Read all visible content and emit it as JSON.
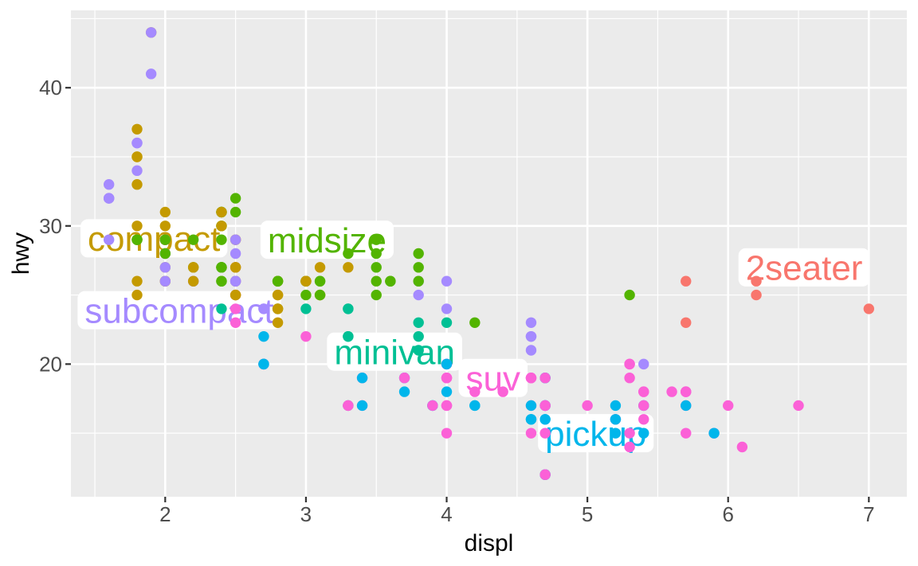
{
  "chart_data": {
    "type": "scatter",
    "title": "",
    "xlabel": "displ",
    "ylabel": "hwy",
    "x_domain": [
      1.33,
      7.27
    ],
    "y_domain": [
      10.4,
      45.6
    ],
    "x_major_ticks": [
      2,
      3,
      4,
      5,
      6,
      7
    ],
    "x_minor_ticks": [
      1.5,
      2.5,
      3.5,
      4.5,
      5.5,
      6.5
    ],
    "y_major_ticks": [
      20,
      30,
      40
    ],
    "y_minor_ticks": [
      15,
      25,
      35,
      45
    ],
    "grid": true,
    "legend_position": "none-direct-labels",
    "classes": [
      {
        "name": "2seater",
        "color": "#F8766D"
      },
      {
        "name": "compact",
        "color": "#C49A00"
      },
      {
        "name": "midsize",
        "color": "#53B400"
      },
      {
        "name": "minivan",
        "color": "#00C094"
      },
      {
        "name": "pickup",
        "color": "#00B6EB"
      },
      {
        "name": "subcompact",
        "color": "#A58AFF"
      },
      {
        "name": "suv",
        "color": "#FB61D7"
      }
    ],
    "class_labels": [
      {
        "text": "compact",
        "x": 1.92,
        "y": 29.1,
        "class_index": 1
      },
      {
        "text": "midsize",
        "x": 3.15,
        "y": 29.0,
        "class_index": 2
      },
      {
        "text": "subcompact",
        "x": 2.1,
        "y": 23.9,
        "class_index": 5
      },
      {
        "text": "minivan",
        "x": 3.63,
        "y": 20.9,
        "class_index": 3
      },
      {
        "text": "suv",
        "x": 4.33,
        "y": 19.0,
        "class_index": 6
      },
      {
        "text": "pickup",
        "x": 5.06,
        "y": 15.0,
        "class_index": 4
      },
      {
        "text": "2seater",
        "x": 6.54,
        "y": 27.0,
        "class_index": 0
      }
    ],
    "points": [
      [
        1.8,
        29,
        1
      ],
      [
        1.8,
        29,
        1
      ],
      [
        2,
        31,
        1
      ],
      [
        2,
        30,
        1
      ],
      [
        2.8,
        26,
        1
      ],
      [
        2.8,
        26,
        1
      ],
      [
        3.1,
        27,
        1
      ],
      [
        1.8,
        26,
        1
      ],
      [
        1.8,
        25,
        1
      ],
      [
        2,
        28,
        1
      ],
      [
        2,
        27,
        1
      ],
      [
        2.8,
        25,
        1
      ],
      [
        2.8,
        25,
        1
      ],
      [
        3.1,
        25,
        1
      ],
      [
        3.1,
        25,
        1
      ],
      [
        2.8,
        24,
        2
      ],
      [
        3.1,
        25,
        2
      ],
      [
        4.2,
        23,
        2
      ],
      [
        5.3,
        20,
        6
      ],
      [
        5.3,
        15,
        6
      ],
      [
        5.3,
        20,
        6
      ],
      [
        5.7,
        17,
        6
      ],
      [
        6,
        17,
        6
      ],
      [
        5.7,
        26,
        0
      ],
      [
        5.7,
        23,
        0
      ],
      [
        6.2,
        26,
        0
      ],
      [
        6.2,
        25,
        0
      ],
      [
        7,
        24,
        0
      ],
      [
        5.3,
        19,
        6
      ],
      [
        5.3,
        14,
        6
      ],
      [
        5.7,
        15,
        6
      ],
      [
        6.5,
        17,
        6
      ],
      [
        2.4,
        27,
        2
      ],
      [
        2.4,
        30,
        2
      ],
      [
        3.1,
        26,
        2
      ],
      [
        3.5,
        29,
        2
      ],
      [
        3.6,
        26,
        2
      ],
      [
        2.4,
        24,
        3
      ],
      [
        3,
        24,
        3
      ],
      [
        3.3,
        22,
        3
      ],
      [
        3.3,
        22,
        3
      ],
      [
        3.3,
        24,
        3
      ],
      [
        3.3,
        24,
        3
      ],
      [
        3.3,
        17,
        3
      ],
      [
        3.8,
        22,
        3
      ],
      [
        3.8,
        21,
        3
      ],
      [
        3.8,
        23,
        3
      ],
      [
        4,
        23,
        3
      ],
      [
        3.7,
        19,
        4
      ],
      [
        3.7,
        18,
        4
      ],
      [
        3.9,
        17,
        4
      ],
      [
        3.9,
        17,
        4
      ],
      [
        4.7,
        19,
        4
      ],
      [
        4.7,
        19,
        4
      ],
      [
        4.7,
        12,
        4
      ],
      [
        5.2,
        16,
        4
      ],
      [
        5.2,
        17,
        4
      ],
      [
        3.9,
        17,
        6
      ],
      [
        4.7,
        17,
        6
      ],
      [
        4.7,
        17,
        6
      ],
      [
        4.7,
        12,
        6
      ],
      [
        5.2,
        16,
        6
      ],
      [
        5.7,
        18,
        6
      ],
      [
        5.9,
        15,
        6
      ],
      [
        4.7,
        16,
        4
      ],
      [
        4.7,
        12,
        4
      ],
      [
        4.7,
        17,
        4
      ],
      [
        4.7,
        17,
        4
      ],
      [
        4.7,
        16,
        4
      ],
      [
        4.7,
        17,
        4
      ],
      [
        5.2,
        15,
        4
      ],
      [
        5.2,
        16,
        4
      ],
      [
        5.7,
        17,
        4
      ],
      [
        5.9,
        15,
        4
      ],
      [
        4.6,
        17,
        6
      ],
      [
        5.4,
        17,
        6
      ],
      [
        5.4,
        18,
        6
      ],
      [
        4,
        17,
        6
      ],
      [
        4,
        19,
        6
      ],
      [
        4,
        17,
        6
      ],
      [
        4,
        19,
        6
      ],
      [
        4.6,
        19,
        6
      ],
      [
        4.6,
        19,
        6
      ],
      [
        4.2,
        17,
        4
      ],
      [
        4.2,
        17,
        4
      ],
      [
        4.6,
        16,
        4
      ],
      [
        4.6,
        16,
        4
      ],
      [
        4.6,
        17,
        4
      ],
      [
        5.4,
        15,
        4
      ],
      [
        5.4,
        17,
        4
      ],
      [
        3.8,
        26,
        5
      ],
      [
        3.8,
        25,
        5
      ],
      [
        4,
        26,
        5
      ],
      [
        4,
        24,
        5
      ],
      [
        4.6,
        21,
        5
      ],
      [
        4.6,
        22,
        5
      ],
      [
        4.6,
        23,
        5
      ],
      [
        4.6,
        22,
        5
      ],
      [
        5.4,
        20,
        5
      ],
      [
        1.6,
        33,
        5
      ],
      [
        1.6,
        32,
        5
      ],
      [
        1.6,
        32,
        5
      ],
      [
        1.6,
        29,
        5
      ],
      [
        1.6,
        32,
        5
      ],
      [
        1.8,
        34,
        5
      ],
      [
        1.8,
        36,
        5
      ],
      [
        1.8,
        36,
        5
      ],
      [
        2,
        29,
        5
      ],
      [
        2.4,
        26,
        2
      ],
      [
        2.4,
        27,
        2
      ],
      [
        2.4,
        30,
        2
      ],
      [
        2.4,
        31,
        2
      ],
      [
        2.4,
        26,
        2
      ],
      [
        2.5,
        26,
        2
      ],
      [
        2.5,
        26,
        2
      ],
      [
        3.3,
        28,
        2
      ],
      [
        2,
        26,
        5
      ],
      [
        2,
        29,
        5
      ],
      [
        2,
        28,
        5
      ],
      [
        2,
        27,
        5
      ],
      [
        2.7,
        24,
        5
      ],
      [
        2.7,
        24,
        5
      ],
      [
        3,
        22,
        6
      ],
      [
        3.7,
        19,
        6
      ],
      [
        4,
        20,
        6
      ],
      [
        4.7,
        17,
        6
      ],
      [
        4.7,
        12,
        6
      ],
      [
        4.7,
        19,
        6
      ],
      [
        5.7,
        18,
        6
      ],
      [
        6.1,
        14,
        6
      ],
      [
        4,
        15,
        6
      ],
      [
        4.2,
        18,
        6
      ],
      [
        4.4,
        18,
        6
      ],
      [
        4.6,
        15,
        6
      ],
      [
        5.4,
        17,
        6
      ],
      [
        5.4,
        16,
        6
      ],
      [
        5.4,
        18,
        6
      ],
      [
        4,
        17,
        6
      ],
      [
        4,
        19,
        6
      ],
      [
        4.6,
        19,
        6
      ],
      [
        5,
        17,
        6
      ],
      [
        2.4,
        29,
        2
      ],
      [
        2.4,
        27,
        2
      ],
      [
        2.5,
        31,
        2
      ],
      [
        2.5,
        32,
        2
      ],
      [
        3.5,
        26,
        2
      ],
      [
        3.5,
        27,
        2
      ],
      [
        3,
        26,
        2
      ],
      [
        3,
        25,
        2
      ],
      [
        3.5,
        25,
        2
      ],
      [
        3.3,
        17,
        6
      ],
      [
        3.3,
        17,
        6
      ],
      [
        4,
        20,
        6
      ],
      [
        5.6,
        18,
        6
      ],
      [
        3.1,
        26,
        2
      ],
      [
        3.8,
        26,
        2
      ],
      [
        3.8,
        27,
        2
      ],
      [
        3.8,
        28,
        2
      ],
      [
        5.3,
        25,
        2
      ],
      [
        2.5,
        25,
        6
      ],
      [
        2.5,
        24,
        6
      ],
      [
        2.5,
        27,
        6
      ],
      [
        2.5,
        25,
        6
      ],
      [
        2.5,
        26,
        6
      ],
      [
        2.5,
        23,
        6
      ],
      [
        2.2,
        26,
        5
      ],
      [
        2.2,
        26,
        5
      ],
      [
        2.5,
        26,
        5
      ],
      [
        2.5,
        26,
        5
      ],
      [
        2.5,
        25,
        1
      ],
      [
        2.5,
        27,
        1
      ],
      [
        2.5,
        25,
        1
      ],
      [
        2.5,
        27,
        1
      ],
      [
        2.7,
        20,
        6
      ],
      [
        2.7,
        20,
        6
      ],
      [
        3.4,
        19,
        6
      ],
      [
        3.4,
        17,
        6
      ],
      [
        4,
        20,
        6
      ],
      [
        4.7,
        17,
        6
      ],
      [
        2.2,
        29,
        2
      ],
      [
        2.2,
        27,
        2
      ],
      [
        2.4,
        31,
        2
      ],
      [
        2.4,
        31,
        2
      ],
      [
        3,
        26,
        2
      ],
      [
        3,
        26,
        2
      ],
      [
        3.5,
        28,
        2
      ],
      [
        2.2,
        26,
        1
      ],
      [
        2.2,
        27,
        1
      ],
      [
        2.4,
        30,
        1
      ],
      [
        2.4,
        31,
        1
      ],
      [
        3,
        26,
        1
      ],
      [
        3,
        26,
        1
      ],
      [
        3.3,
        27,
        1
      ],
      [
        1.8,
        30,
        1
      ],
      [
        1.8,
        33,
        1
      ],
      [
        1.8,
        35,
        1
      ],
      [
        1.8,
        37,
        1
      ],
      [
        1.8,
        35,
        1
      ],
      [
        4.7,
        15,
        6
      ],
      [
        5.7,
        18,
        6
      ],
      [
        2.7,
        20,
        4
      ],
      [
        2.7,
        20,
        4
      ],
      [
        2.7,
        22,
        4
      ],
      [
        3.4,
        17,
        4
      ],
      [
        3.4,
        19,
        4
      ],
      [
        4,
        18,
        4
      ],
      [
        4,
        20,
        4
      ],
      [
        2,
        29,
        1
      ],
      [
        2,
        26,
        1
      ],
      [
        2,
        29,
        1
      ],
      [
        2,
        29,
        1
      ],
      [
        2.8,
        24,
        1
      ],
      [
        1.9,
        44,
        1
      ],
      [
        2,
        29,
        1
      ],
      [
        2,
        26,
        1
      ],
      [
        2,
        29,
        1
      ],
      [
        2,
        29,
        1
      ],
      [
        2.5,
        29,
        1
      ],
      [
        2.5,
        29,
        1
      ],
      [
        2.8,
        23,
        1
      ],
      [
        2.8,
        24,
        1
      ],
      [
        1.9,
        44,
        5
      ],
      [
        1.9,
        41,
        5
      ],
      [
        2,
        29,
        5
      ],
      [
        2,
        26,
        5
      ],
      [
        2.5,
        28,
        5
      ],
      [
        2.5,
        29,
        5
      ],
      [
        1.8,
        29,
        2
      ],
      [
        1.8,
        29,
        2
      ],
      [
        2,
        28,
        2
      ],
      [
        2,
        29,
        2
      ],
      [
        2.8,
        26,
        2
      ],
      [
        2.8,
        26,
        2
      ],
      [
        3.6,
        26,
        2
      ]
    ]
  },
  "style": {
    "panel_background": "#EBEBEB",
    "grid_color": "#FFFFFF",
    "outer_background": "#FFFFFF",
    "tick_label_color": "#4D4D4D",
    "tick_mark_color": "#333333",
    "axis_title_color": "#000000",
    "label_box_fill": "#FFFFFF"
  }
}
